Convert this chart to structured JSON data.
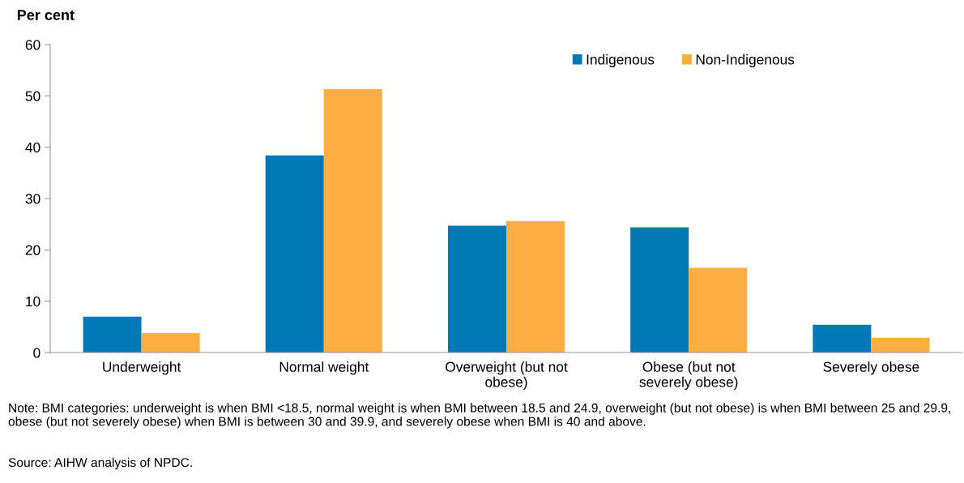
{
  "chart_data": {
    "type": "bar",
    "ylabel": "Per cent",
    "categories": [
      "Underweight",
      "Normal weight",
      "Overweight (but not\nobese)",
      "Obese (but not\nseverely obese)",
      "Severely obese"
    ],
    "series": [
      {
        "name": "Indigenous",
        "color": "#0079b6",
        "values": [
          7.0,
          38.4,
          24.7,
          24.4,
          5.4
        ]
      },
      {
        "name": "Non-Indigenous",
        "color": "#fdae40",
        "values": [
          3.8,
          51.3,
          25.6,
          16.5,
          2.9
        ]
      }
    ],
    "ylim": [
      0,
      60
    ],
    "yticks": [
      0,
      10,
      20,
      30,
      40,
      50,
      60
    ],
    "grid": false,
    "legend": "top right",
    "annotations": [
      "Note: BMI categories: underweight is when BMI <18.5, normal weight is when BMI between 18.5 and 24.9, overweight (but not obese) is when BMI between 25 and 29.9, obese (but not severely obese) when BMI is between 30 and 39.9, and severely obese when BMI is 40 and above.",
      "Source: AIHW analysis of NPDC."
    ]
  }
}
